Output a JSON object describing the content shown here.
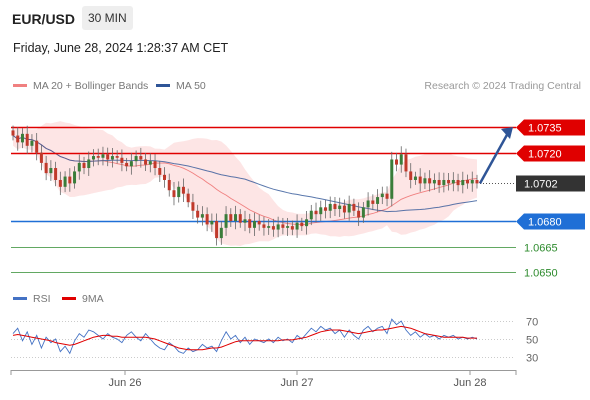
{
  "header": {
    "symbol": "EUR/USD",
    "timeframe": "30 MIN",
    "datetime": "Friday, June 28, 2024 1:28:37 AM CET"
  },
  "legend": {
    "ma20_label": "MA 20 + Bollinger Bands",
    "ma20_color": "#f08080",
    "ma50_label": "MA 50",
    "ma50_color": "#2f5597",
    "credit": "Research © 2024 Trading Central"
  },
  "rsi_legend": {
    "rsi_label": "RSI",
    "rsi_color": "#4472c4",
    "ma9_label": "9MA",
    "ma9_color": "#e00000"
  },
  "chart_data": {
    "type": "candlestick",
    "x_ticks": [
      "Jun 26",
      "Jun 27",
      "Jun 28"
    ],
    "price_range": [
      1.0642,
      1.0742
    ],
    "levels": [
      {
        "value": 1.0735,
        "label": "1.0735",
        "color": "#e00000",
        "kind": "resistance"
      },
      {
        "value": 1.072,
        "label": "1.0720",
        "color": "#e00000",
        "kind": "resistance"
      },
      {
        "value": 1.0702,
        "label": "1.0702",
        "color": "#333333",
        "kind": "current"
      },
      {
        "value": 1.068,
        "label": "1.0680",
        "color": "#1f6fd6",
        "kind": "pivot"
      },
      {
        "value": 1.0665,
        "label": "1.0665",
        "color": "#2e8b2e",
        "kind": "support"
      },
      {
        "value": 1.065,
        "label": "1.0650",
        "color": "#2e8b2e",
        "kind": "support"
      }
    ],
    "close": [
      1.073,
      1.0726,
      1.0731,
      1.0724,
      1.0727,
      1.072,
      1.0714,
      1.0708,
      1.0711,
      1.0704,
      1.07,
      1.0706,
      1.0702,
      1.0709,
      1.0714,
      1.0711,
      1.0716,
      1.0718,
      1.0717,
      1.0719,
      1.0716,
      1.0718,
      1.0717,
      1.0714,
      1.0712,
      1.0715,
      1.0718,
      1.0716,
      1.0713,
      1.0715,
      1.0711,
      1.0707,
      1.0704,
      1.0698,
      1.0694,
      1.07,
      1.0696,
      1.0691,
      1.0686,
      1.0682,
      1.0684,
      1.0678,
      1.068,
      1.067,
      1.0676,
      1.0684,
      1.068,
      1.0684,
      1.0679,
      1.0681,
      1.0676,
      1.068,
      1.0678,
      1.0676,
      1.0677,
      1.0675,
      1.0678,
      1.0676,
      1.0677,
      1.0675,
      1.0679,
      1.0677,
      1.0681,
      1.0686,
      1.0684,
      1.0688,
      1.0686,
      1.069,
      1.0687,
      1.0689,
      1.0685,
      1.069,
      1.0686,
      1.0682,
      1.0688,
      1.0692,
      1.069,
      1.0694,
      1.0696,
      1.0693,
      1.0716,
      1.0713,
      1.0719,
      1.0709,
      1.0704,
      1.0706,
      1.0702,
      1.0705,
      1.0702,
      1.0704,
      1.0701,
      1.0704,
      1.0702,
      1.0704,
      1.0701,
      1.0704,
      1.0702,
      1.0704,
      1.0702
    ],
    "projection": {
      "from": 1.0702,
      "to": 1.0735
    },
    "rsi": {
      "levels": [
        70,
        50,
        30
      ],
      "range": [
        20,
        80
      ],
      "values": [
        56,
        62,
        48,
        58,
        44,
        54,
        40,
        52,
        46,
        50,
        36,
        42,
        34,
        48,
        56,
        52,
        60,
        58,
        54,
        50,
        56,
        52,
        50,
        46,
        54,
        58,
        52,
        48,
        56,
        50,
        44,
        40,
        38,
        46,
        42,
        36,
        34,
        40,
        36,
        38,
        44,
        40,
        42,
        36,
        48,
        58,
        50,
        54,
        46,
        52,
        44,
        50,
        48,
        46,
        50,
        46,
        52,
        48,
        50,
        46,
        54,
        50,
        56,
        62,
        58,
        64,
        60,
        62,
        56,
        60,
        52,
        60,
        54,
        50,
        60,
        64,
        58,
        62,
        64,
        56,
        72,
        66,
        70,
        60,
        54,
        58,
        52,
        56,
        52,
        54,
        50,
        54,
        52,
        54,
        50,
        52,
        50,
        52,
        50
      ],
      "ma9": [
        54,
        55,
        54,
        53,
        52,
        51,
        50,
        49,
        48,
        46,
        45,
        44,
        43,
        44,
        46,
        48,
        50,
        52,
        53,
        54,
        54,
        53,
        53,
        52,
        52,
        52,
        52,
        52,
        52,
        51,
        50,
        48,
        46,
        44,
        42,
        40,
        39,
        38,
        38,
        38,
        38,
        39,
        40,
        40,
        41,
        43,
        45,
        47,
        48,
        48,
        48,
        48,
        48,
        48,
        48,
        48,
        48,
        49,
        49,
        49,
        50,
        51,
        52,
        54,
        56,
        58,
        59,
        60,
        60,
        60,
        59,
        58,
        57,
        56,
        57,
        58,
        59,
        60,
        60,
        61,
        62,
        63,
        64,
        63,
        62,
        60,
        58,
        56,
        55,
        54,
        53,
        52,
        52,
        52,
        52,
        52,
        51,
        51,
        51
      ]
    }
  },
  "labels": {
    "current": "1.0702"
  }
}
